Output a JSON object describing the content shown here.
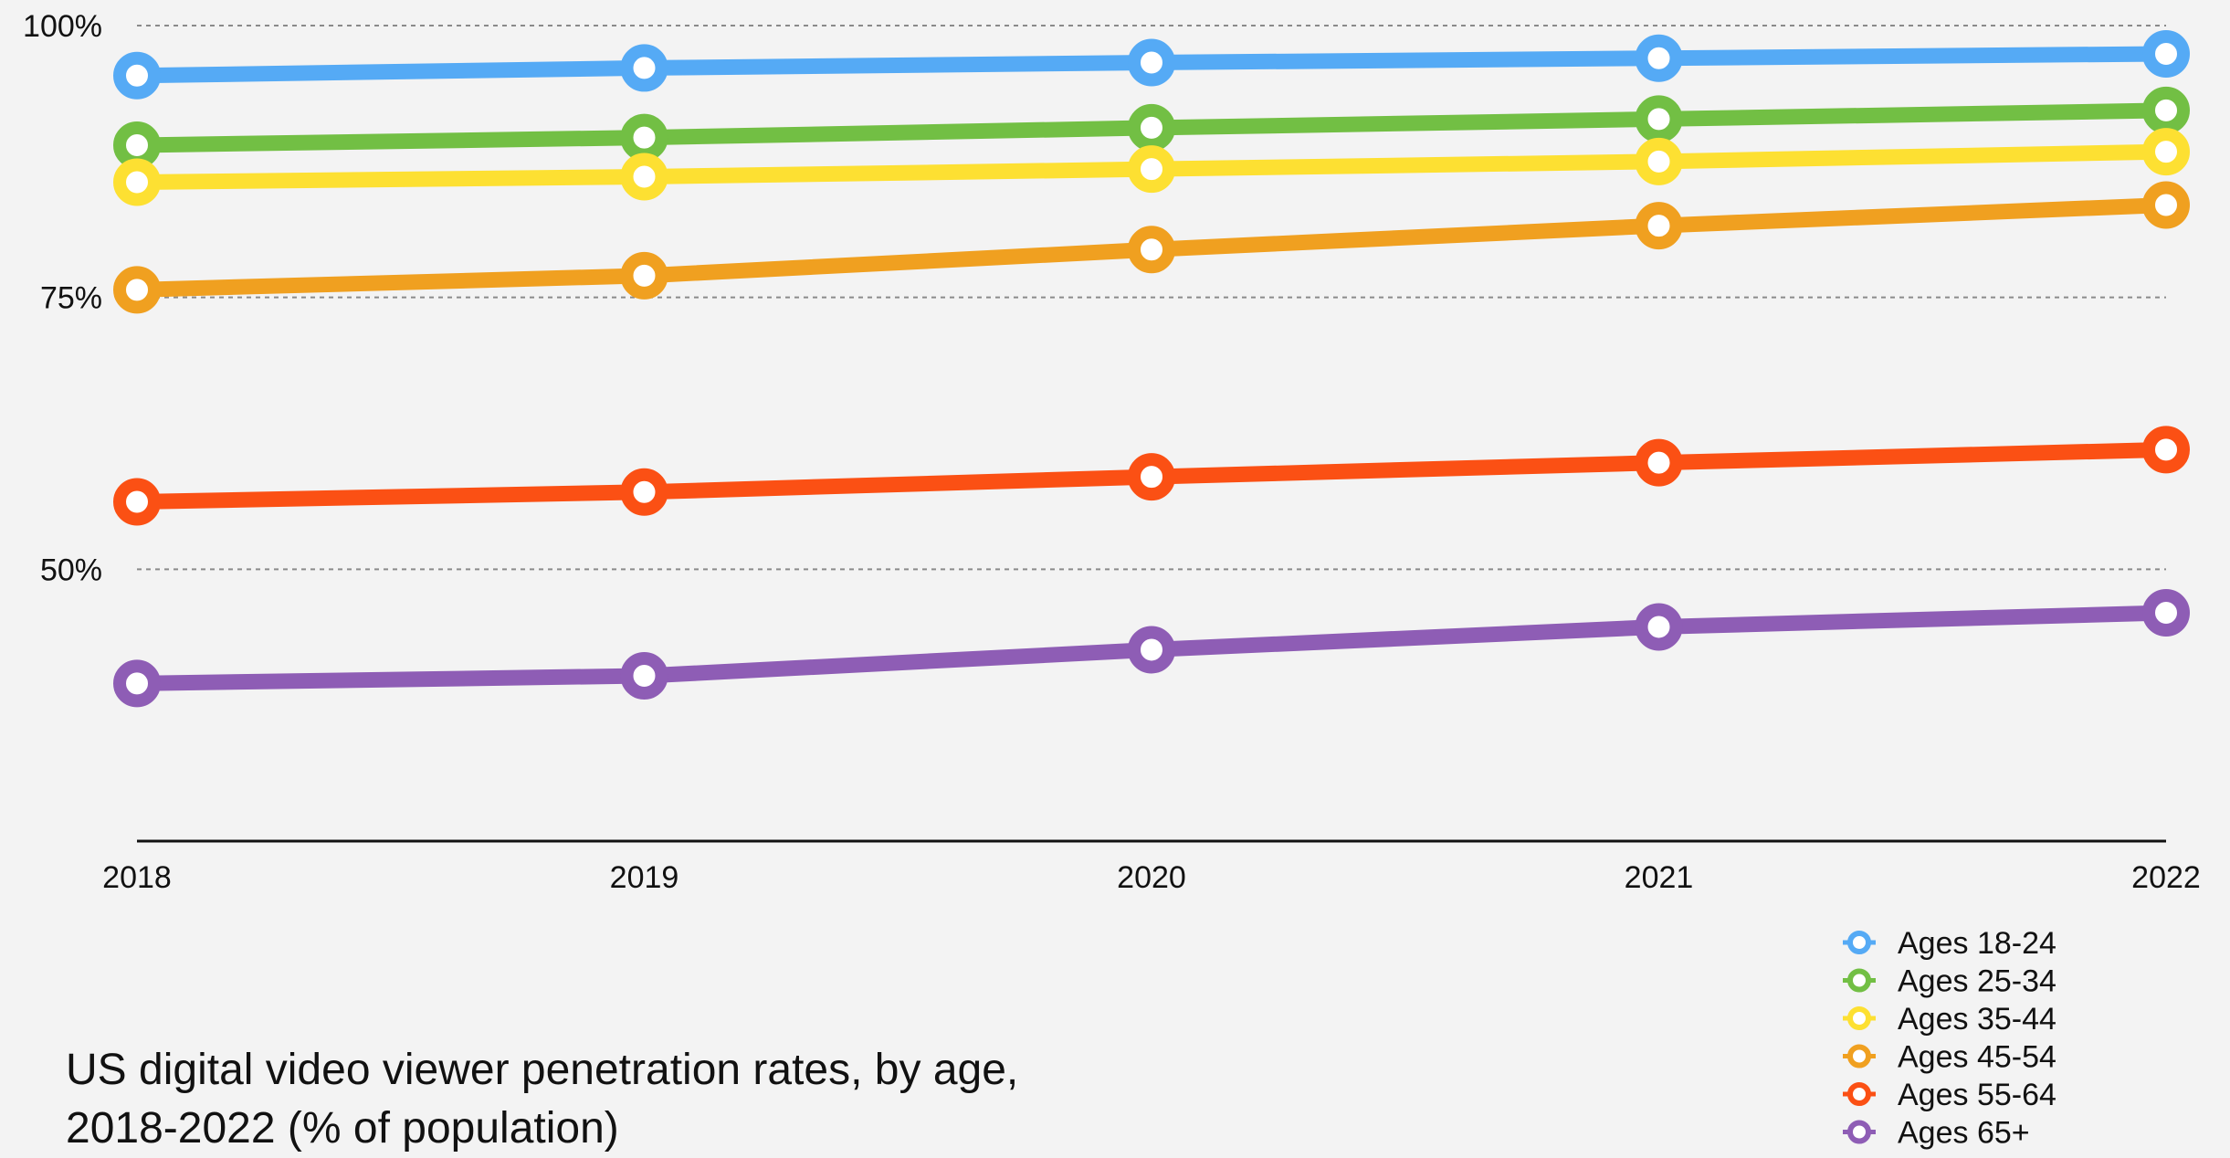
{
  "chart_data": {
    "type": "line",
    "title_lines": [
      "US digital video viewer penetration rates, by age,",
      "2018-2022 (% of population)"
    ],
    "categories": [
      "2018",
      "2019",
      "2020",
      "2021",
      "2022"
    ],
    "y_ticks": [
      "100%",
      "75%",
      "50%"
    ],
    "ylim": [
      25,
      100
    ],
    "grid": true,
    "legend_position": "bottom-right",
    "series": [
      {
        "name": "Ages 18-24",
        "color": "#55aaf5",
        "values": [
          95.4,
          96.1,
          96.6,
          97.0,
          97.4
        ]
      },
      {
        "name": "Ages 25-34",
        "color": "#72bf44",
        "values": [
          89.0,
          89.7,
          90.6,
          91.4,
          92.2
        ]
      },
      {
        "name": "Ages 35-44",
        "color": "#fde032",
        "values": [
          85.6,
          86.1,
          86.8,
          87.5,
          88.4
        ]
      },
      {
        "name": "Ages 45-54",
        "color": "#f0a020",
        "values": [
          75.7,
          77.0,
          79.4,
          81.6,
          83.5
        ]
      },
      {
        "name": "Ages 55-64",
        "color": "#fb5014",
        "values": [
          56.2,
          57.1,
          58.5,
          59.8,
          61.0
        ]
      },
      {
        "name": "Ages 65+",
        "color": "#8e5db5",
        "values": [
          39.5,
          40.2,
          42.6,
          44.7,
          46.0
        ]
      }
    ]
  }
}
